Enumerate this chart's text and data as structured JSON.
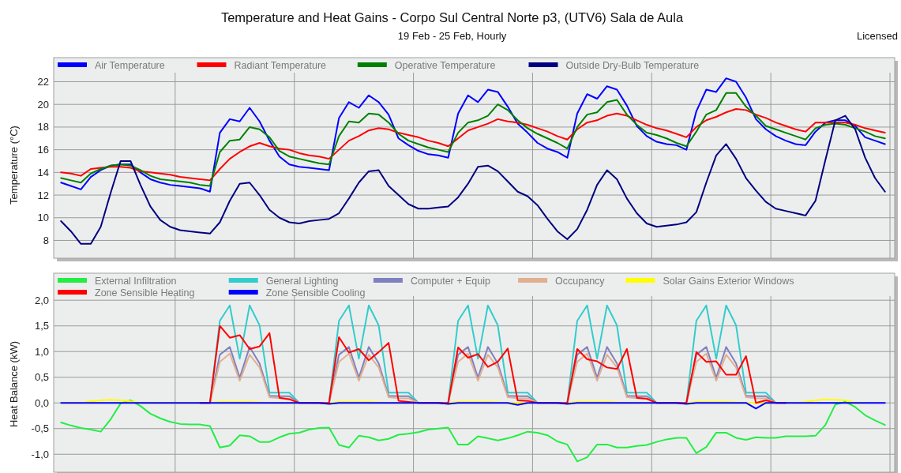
{
  "chart_data": [
    {
      "type": "line",
      "title": "Temperature and Heat Gains - Corpo Sul Central Norte p3, (UTV6) Sala de Aula",
      "subtitle": "19 Feb - 25 Feb, Hourly",
      "annotations": [
        "Licensed"
      ],
      "ylabel": "Temperature (°C)",
      "categories": [
        null,
        null,
        null,
        null,
        null,
        null,
        null,
        null,
        null,
        null,
        null,
        null,
        null,
        null,
        null,
        null,
        null,
        null,
        null,
        null,
        null,
        null,
        null,
        null,
        null,
        null,
        null,
        null,
        null,
        null,
        null,
        null,
        null,
        null,
        null,
        null,
        null,
        null,
        null,
        null,
        null,
        null,
        null,
        null,
        null,
        null,
        null,
        null,
        null,
        null,
        null,
        null,
        null,
        null,
        null,
        null,
        null,
        null,
        null,
        null,
        null,
        null,
        null,
        null,
        null,
        null,
        null,
        null,
        null,
        null,
        null,
        null,
        null,
        null,
        null,
        null,
        null,
        null,
        null,
        null,
        null,
        null,
        null,
        null
      ],
      "ylim": [
        6.5,
        22.8
      ],
      "yticks": [
        8,
        10,
        12,
        14,
        16,
        18,
        20,
        22
      ],
      "grid": true,
      "legend": "top",
      "tick_labels": "y",
      "line_style": "solid",
      "marker": "none",
      "series": [
        {
          "name": "Air Temperature",
          "color": "#0000ff",
          "values": [
            13.1,
            12.8,
            12.5,
            13.6,
            14.2,
            14.6,
            14.7,
            14.7,
            14.0,
            13.4,
            13.1,
            12.9,
            12.8,
            12.7,
            12.6,
            12.3,
            17.5,
            18.7,
            18.5,
            19.7,
            18.5,
            16.8,
            15.4,
            14.7,
            14.5,
            14.4,
            14.3,
            14.2,
            18.8,
            20.2,
            19.7,
            20.8,
            20.2,
            19.1,
            17.0,
            16.4,
            15.9,
            15.6,
            15.5,
            15.3,
            19.2,
            20.8,
            20.2,
            21.3,
            21.1,
            19.8,
            18.3,
            17.5,
            16.6,
            16.1,
            15.8,
            15.3,
            19.2,
            20.9,
            20.5,
            21.6,
            21.3,
            19.9,
            18.1,
            17.2,
            16.7,
            16.5,
            16.4,
            16.0,
            19.4,
            21.3,
            21.1,
            22.3,
            22.0,
            20.6,
            18.7,
            17.8,
            17.2,
            16.8,
            16.5,
            16.4,
            17.6,
            18.4,
            18.6,
            18.6,
            18.1,
            17.1,
            16.8,
            16.5
          ]
        },
        {
          "name": "Radiant Temperature",
          "color": "#ff0000",
          "values": [
            14.0,
            13.9,
            13.7,
            14.3,
            14.4,
            14.5,
            14.5,
            14.4,
            14.1,
            14.0,
            13.9,
            13.8,
            13.6,
            13.5,
            13.4,
            13.3,
            14.3,
            15.2,
            15.8,
            16.3,
            16.6,
            16.3,
            16.1,
            16.0,
            15.7,
            15.5,
            15.4,
            15.2,
            16.0,
            16.8,
            17.2,
            17.7,
            17.9,
            17.8,
            17.5,
            17.3,
            17.1,
            16.8,
            16.6,
            16.3,
            17.0,
            17.7,
            18.0,
            18.3,
            18.7,
            18.5,
            18.4,
            18.2,
            17.9,
            17.6,
            17.2,
            16.9,
            17.8,
            18.4,
            18.6,
            19.0,
            19.2,
            19.0,
            18.6,
            18.2,
            17.9,
            17.7,
            17.4,
            17.1,
            18.0,
            18.6,
            18.9,
            19.3,
            19.6,
            19.5,
            19.1,
            18.8,
            18.4,
            18.1,
            17.8,
            17.6,
            18.4,
            18.4,
            18.4,
            18.4,
            18.2,
            17.9,
            17.7,
            17.5
          ]
        },
        {
          "name": "Operative Temperature",
          "color": "#008000",
          "values": [
            13.5,
            13.3,
            13.1,
            13.9,
            14.3,
            14.6,
            14.7,
            14.6,
            14.2,
            13.7,
            13.4,
            13.3,
            13.2,
            13.1,
            12.9,
            12.8,
            15.8,
            16.8,
            16.9,
            18.0,
            17.8,
            17.1,
            15.9,
            15.4,
            15.2,
            15.0,
            14.8,
            14.7,
            17.2,
            18.5,
            18.4,
            19.2,
            19.1,
            18.4,
            17.4,
            16.8,
            16.5,
            16.2,
            16.0,
            15.8,
            17.5,
            18.4,
            18.6,
            19.0,
            20.0,
            19.5,
            18.6,
            17.9,
            17.4,
            17.0,
            16.6,
            16.1,
            18.0,
            19.1,
            19.3,
            20.2,
            20.4,
            19.1,
            18.2,
            17.5,
            17.3,
            17.0,
            16.6,
            16.3,
            17.6,
            19.1,
            19.5,
            21.0,
            21.0,
            19.8,
            19.0,
            18.1,
            17.8,
            17.5,
            17.2,
            16.9,
            17.9,
            18.2,
            18.3,
            18.2,
            17.9,
            17.6,
            17.2,
            17.0
          ]
        },
        {
          "name": "Outside Dry-Bulb Temperature",
          "color": "#000080",
          "values": [
            9.7,
            8.8,
            7.7,
            7.7,
            9.2,
            12.2,
            15.0,
            15.0,
            12.9,
            11.0,
            9.8,
            9.2,
            8.9,
            8.8,
            8.7,
            8.6,
            9.6,
            11.5,
            13.0,
            13.1,
            12.0,
            10.7,
            10.0,
            9.6,
            9.5,
            9.7,
            9.8,
            9.9,
            10.4,
            11.7,
            13.1,
            14.1,
            14.2,
            12.8,
            12.0,
            11.2,
            10.8,
            10.8,
            10.9,
            11.0,
            11.8,
            13.0,
            14.5,
            14.6,
            14.1,
            13.2,
            12.3,
            11.9,
            11.1,
            9.9,
            8.8,
            8.1,
            9.0,
            10.7,
            12.9,
            14.2,
            13.4,
            11.7,
            10.4,
            9.5,
            9.2,
            9.3,
            9.4,
            9.6,
            10.5,
            13.1,
            15.5,
            16.5,
            15.2,
            13.5,
            12.4,
            11.4,
            10.8,
            10.6,
            10.4,
            10.2,
            11.5,
            15.1,
            18.6,
            19.0,
            17.8,
            15.3,
            13.5,
            12.3
          ]
        }
      ]
    },
    {
      "type": "line",
      "ylabel": "Heat Balance (kW)",
      "categories": [
        null,
        null,
        null,
        null,
        null,
        null,
        null,
        null,
        null,
        null,
        null,
        null,
        null,
        null,
        null,
        null,
        null,
        null,
        null,
        null,
        null,
        null,
        null,
        null,
        null,
        null,
        null,
        null,
        null,
        null,
        null,
        null,
        null,
        null,
        null,
        null,
        null,
        null,
        null,
        null,
        null,
        null,
        null,
        null,
        null,
        null,
        null,
        null,
        null,
        null,
        null,
        null,
        null,
        null,
        null,
        null,
        null,
        null,
        null,
        null,
        null,
        null,
        null,
        null,
        null,
        null,
        null,
        null,
        null,
        null,
        null,
        null,
        null,
        null,
        null,
        null,
        null,
        null,
        null,
        null,
        null,
        null,
        null,
        null
      ],
      "ylim": [
        -1.35,
        2.08
      ],
      "yticks": [
        {
          "value": -1,
          "label": "-1,0"
        },
        {
          "value": -0.5,
          "label": "-0,5"
        },
        {
          "value": 0,
          "label": "0,0"
        },
        {
          "value": 0.5,
          "label": "0,5"
        },
        {
          "value": 1,
          "label": "1,0"
        },
        {
          "value": 1.5,
          "label": "1,5"
        },
        {
          "value": 2,
          "label": "2,0"
        }
      ],
      "grid": true,
      "legend": "top",
      "tick_labels": "y",
      "line_style": "solid",
      "marker": "none",
      "series": [
        {
          "name": "External Infiltration",
          "color": "#22ee44",
          "values": [
            -0.38,
            -0.44,
            -0.49,
            -0.52,
            -0.56,
            -0.32,
            -0.01,
            0.05,
            -0.06,
            -0.21,
            -0.3,
            -0.37,
            -0.41,
            -0.42,
            -0.42,
            -0.45,
            -0.87,
            -0.83,
            -0.63,
            -0.65,
            -0.76,
            -0.76,
            -0.67,
            -0.6,
            -0.58,
            -0.52,
            -0.49,
            -0.48,
            -0.82,
            -0.87,
            -0.64,
            -0.67,
            -0.73,
            -0.7,
            -0.62,
            -0.6,
            -0.57,
            -0.52,
            -0.5,
            -0.48,
            -0.81,
            -0.81,
            -0.65,
            -0.69,
            -0.73,
            -0.69,
            -0.63,
            -0.56,
            -0.58,
            -0.63,
            -0.75,
            -0.81,
            -1.14,
            -1.06,
            -0.81,
            -0.81,
            -0.87,
            -0.87,
            -0.84,
            -0.82,
            -0.76,
            -0.71,
            -0.68,
            -0.68,
            -0.98,
            -0.86,
            -0.58,
            -0.58,
            -0.68,
            -0.72,
            -0.67,
            -0.68,
            -0.68,
            -0.65,
            -0.65,
            -0.65,
            -0.64,
            -0.43,
            -0.03,
            0.02,
            -0.08,
            -0.24,
            -0.34,
            -0.43
          ]
        },
        {
          "name": "General Lighting",
          "color": "#33cccc",
          "values": [
            null,
            null,
            null,
            null,
            null,
            null,
            null,
            null,
            null,
            null,
            null,
            null,
            null,
            null,
            0,
            0,
            1.6,
            1.9,
            0.86,
            1.9,
            1.51,
            0.2,
            0.2,
            0.2,
            0,
            0,
            0,
            0,
            1.6,
            1.9,
            0.86,
            1.9,
            1.51,
            0.2,
            0.2,
            0.2,
            0,
            0,
            0,
            0,
            1.6,
            1.9,
            0.86,
            1.9,
            1.51,
            0.2,
            0.2,
            0.2,
            0,
            0,
            0,
            0,
            1.6,
            1.9,
            0.86,
            1.9,
            1.51,
            0.2,
            0.2,
            0.2,
            0,
            0,
            0,
            0,
            1.6,
            1.9,
            0.86,
            1.9,
            1.51,
            0.2,
            0.2,
            0.2,
            0,
            0,
            null,
            null,
            null,
            null,
            null,
            null,
            null,
            null,
            null,
            null
          ]
        },
        {
          "name": "Computer + Equip",
          "color": "#8080c0",
          "values": [
            null,
            null,
            null,
            null,
            null,
            null,
            null,
            null,
            null,
            null,
            null,
            null,
            null,
            null,
            0,
            0,
            0.94,
            1.09,
            0.49,
            1.09,
            0.77,
            0.14,
            0.13,
            0.13,
            0,
            0,
            0,
            0,
            0.94,
            1.09,
            0.49,
            1.09,
            0.77,
            0.14,
            0.13,
            0.13,
            0,
            0,
            0,
            0,
            0.94,
            1.09,
            0.49,
            1.09,
            0.77,
            0.14,
            0.13,
            0.13,
            0,
            0,
            0,
            0,
            0.94,
            1.09,
            0.49,
            1.09,
            0.77,
            0.14,
            0.13,
            0.13,
            0,
            0,
            0,
            0,
            0.94,
            1.09,
            0.49,
            1.09,
            0.77,
            0.14,
            0.13,
            0.13,
            0,
            0,
            null,
            null,
            null,
            null,
            null,
            null,
            null,
            null,
            null,
            null
          ]
        },
        {
          "name": "Occupancy",
          "color": "#e0b090",
          "values": [
            null,
            null,
            null,
            null,
            null,
            null,
            null,
            null,
            null,
            null,
            null,
            null,
            null,
            null,
            0,
            0,
            0.8,
            0.96,
            0.43,
            0.94,
            0.69,
            0.11,
            0.09,
            0.09,
            0,
            0,
            0,
            0,
            0.8,
            0.96,
            0.43,
            0.94,
            0.69,
            0.11,
            0.09,
            0.09,
            0,
            0,
            0,
            0,
            0.8,
            0.96,
            0.43,
            0.94,
            0.69,
            0.11,
            0.09,
            0.09,
            0,
            0,
            0,
            0,
            0.8,
            0.96,
            0.43,
            0.94,
            0.69,
            0.11,
            0.09,
            0.09,
            0,
            0,
            0,
            0,
            0.8,
            0.96,
            0.43,
            0.94,
            0.69,
            0.11,
            0.09,
            0.09,
            0,
            0,
            null,
            null,
            null,
            null,
            null,
            null,
            null,
            null,
            null,
            null
          ]
        },
        {
          "name": "Solar Gains Exterior Windows",
          "color": "#ffff00",
          "values": [
            0,
            0,
            0,
            0.03,
            0.05,
            0.06,
            0.05,
            0.03,
            0,
            0,
            0,
            0,
            0,
            0,
            0,
            0,
            0.02,
            0.02,
            0.02,
            0.02,
            0.01,
            0,
            0,
            0,
            0,
            0,
            0,
            0,
            0.02,
            0.02,
            0.02,
            0.02,
            0.01,
            0,
            0,
            0,
            0,
            0,
            0,
            0,
            0.02,
            0.02,
            0.02,
            0.02,
            0.01,
            0,
            0,
            0,
            0,
            0,
            0,
            0,
            0.02,
            0.02,
            0.02,
            0.02,
            0.01,
            0,
            0,
            0,
            0,
            0,
            0,
            0,
            0.02,
            0.02,
            0.02,
            0.02,
            0.01,
            0,
            0,
            0,
            0,
            0,
            0,
            0.02,
            0.05,
            0.07,
            0.06,
            0.05,
            0,
            0,
            null,
            null
          ]
        },
        {
          "name": "Zone Sensible Heating",
          "color": "#ff0000",
          "values": [
            null,
            null,
            null,
            null,
            null,
            null,
            null,
            null,
            null,
            null,
            null,
            null,
            null,
            null,
            0,
            0,
            1.5,
            1.27,
            1.32,
            1.05,
            1.1,
            1.36,
            0.1,
            0.07,
            0,
            0,
            0,
            0,
            1.28,
            0.98,
            1.05,
            0.83,
            0.99,
            1.17,
            0.04,
            0.02,
            0,
            0,
            0,
            0,
            1.08,
            0.88,
            0.95,
            0.7,
            0.8,
            1.06,
            0.05,
            0.04,
            0,
            0,
            0,
            0,
            1.05,
            0.85,
            0.81,
            0.69,
            0.66,
            1.05,
            0.1,
            0.08,
            0,
            0,
            0,
            0,
            0.99,
            0.8,
            0.81,
            0.55,
            0.55,
            0.91,
            0,
            0.05,
            0,
            0,
            null,
            null,
            null,
            null,
            null,
            null,
            null,
            null,
            null,
            null
          ]
        },
        {
          "name": "Zone Sensible Cooling",
          "color": "#0000ff",
          "values": [
            0,
            0,
            0,
            0,
            0,
            0,
            0,
            0,
            0,
            0,
            0,
            0,
            0,
            0,
            0,
            0,
            0,
            0,
            0,
            0,
            0,
            0,
            0,
            0,
            0,
            0,
            0,
            -0.02,
            0,
            0,
            0,
            0,
            0,
            0,
            0,
            0,
            0,
            0,
            0,
            -0.02,
            0,
            0,
            0,
            0,
            0,
            0,
            -0.04,
            0,
            0,
            0,
            0,
            -0.02,
            0,
            0,
            0,
            0,
            0,
            0,
            0,
            0,
            0,
            0,
            0,
            -0.02,
            0,
            0,
            0,
            0,
            0,
            0,
            -0.11,
            0,
            0,
            0,
            0,
            0,
            0,
            0,
            0,
            0,
            0,
            0,
            0,
            0
          ]
        }
      ]
    }
  ]
}
